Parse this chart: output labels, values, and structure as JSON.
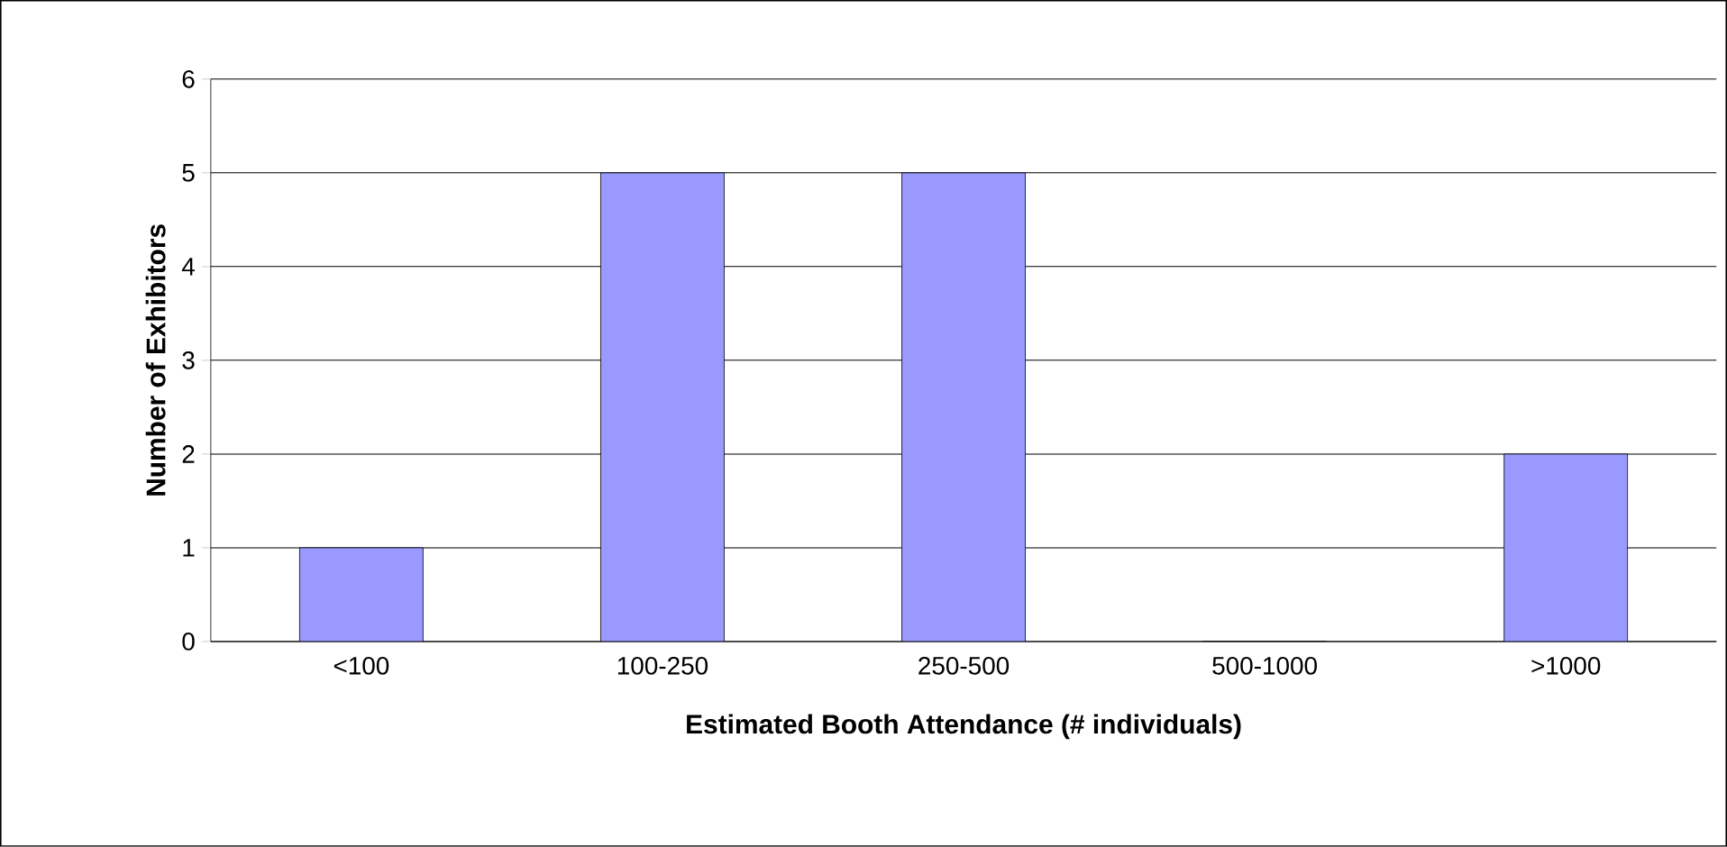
{
  "chart_data": {
    "type": "bar",
    "xlabel": "Estimated Booth Attendance (# individuals)",
    "ylabel": "Number of Exhibitors",
    "categories": [
      "<100",
      "100-250",
      "250-500",
      "500-1000",
      ">1000"
    ],
    "values": [
      1,
      5,
      5,
      0,
      2
    ],
    "color": "#9999ff",
    "ylim": [
      0,
      6
    ],
    "yticks": [
      0,
      1,
      2,
      3,
      4,
      5,
      6
    ],
    "grid": "y"
  }
}
